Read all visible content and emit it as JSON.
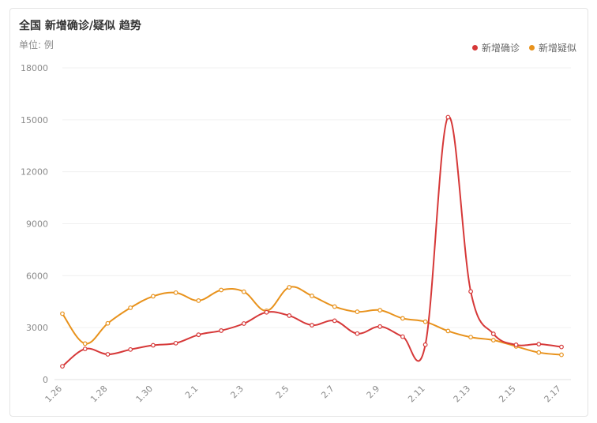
{
  "title": "全国 新增确诊/疑似 趋势",
  "unit_label": "单位: 例",
  "legend": [
    {
      "label": "新增确诊",
      "color": "#d63838"
    },
    {
      "label": "新增疑似",
      "color": "#e8921c"
    }
  ],
  "chart_data": {
    "type": "line",
    "title": "全国 新增确诊/疑似 趋势",
    "ylabel": "单位: 例",
    "ylim": [
      0,
      18000
    ],
    "y_ticks": [
      "0",
      "3000",
      "6000",
      "9000",
      "12000",
      "15000",
      "18000"
    ],
    "x": [
      "1.26",
      "1.27",
      "1.28",
      "1.29",
      "1.30",
      "1.31",
      "2.1",
      "2.2",
      "2.3",
      "2.4",
      "2.5",
      "2.6",
      "2.7",
      "2.8",
      "2.9",
      "2.10",
      "2.11",
      "2.12",
      "2.13",
      "2.14",
      "2.15",
      "2.16",
      "2.17"
    ],
    "x_tick_labels": [
      "1.26",
      "",
      "1.28",
      "",
      "1.30",
      "",
      "2.1",
      "",
      "2.3",
      "",
      "2.5",
      "",
      "2.7",
      "",
      "2.9",
      "",
      "2.11",
      "",
      "2.13",
      "",
      "2.15",
      "",
      "2.17"
    ],
    "grid": true,
    "legend_position": "top-right",
    "series": [
      {
        "name": "新增确诊",
        "color": "#d63838",
        "values": [
          769,
          1771,
          1459,
          1737,
          1981,
          2102,
          2590,
          2829,
          3235,
          3887,
          3694,
          3143,
          3399,
          2656,
          3062,
          2478,
          2015,
          15152,
          5090,
          2641,
          2009,
          2048,
          1886
        ]
      },
      {
        "name": "新增疑似",
        "color": "#e8921c",
        "values": [
          3806,
          2077,
          3248,
          4148,
          4812,
          5019,
          4562,
          5173,
          5072,
          3971,
          5328,
          4833,
          4214,
          3916,
          4008,
          3536,
          3342,
          2807,
          2450,
          2277,
          1918,
          1563,
          1432
        ]
      }
    ]
  }
}
